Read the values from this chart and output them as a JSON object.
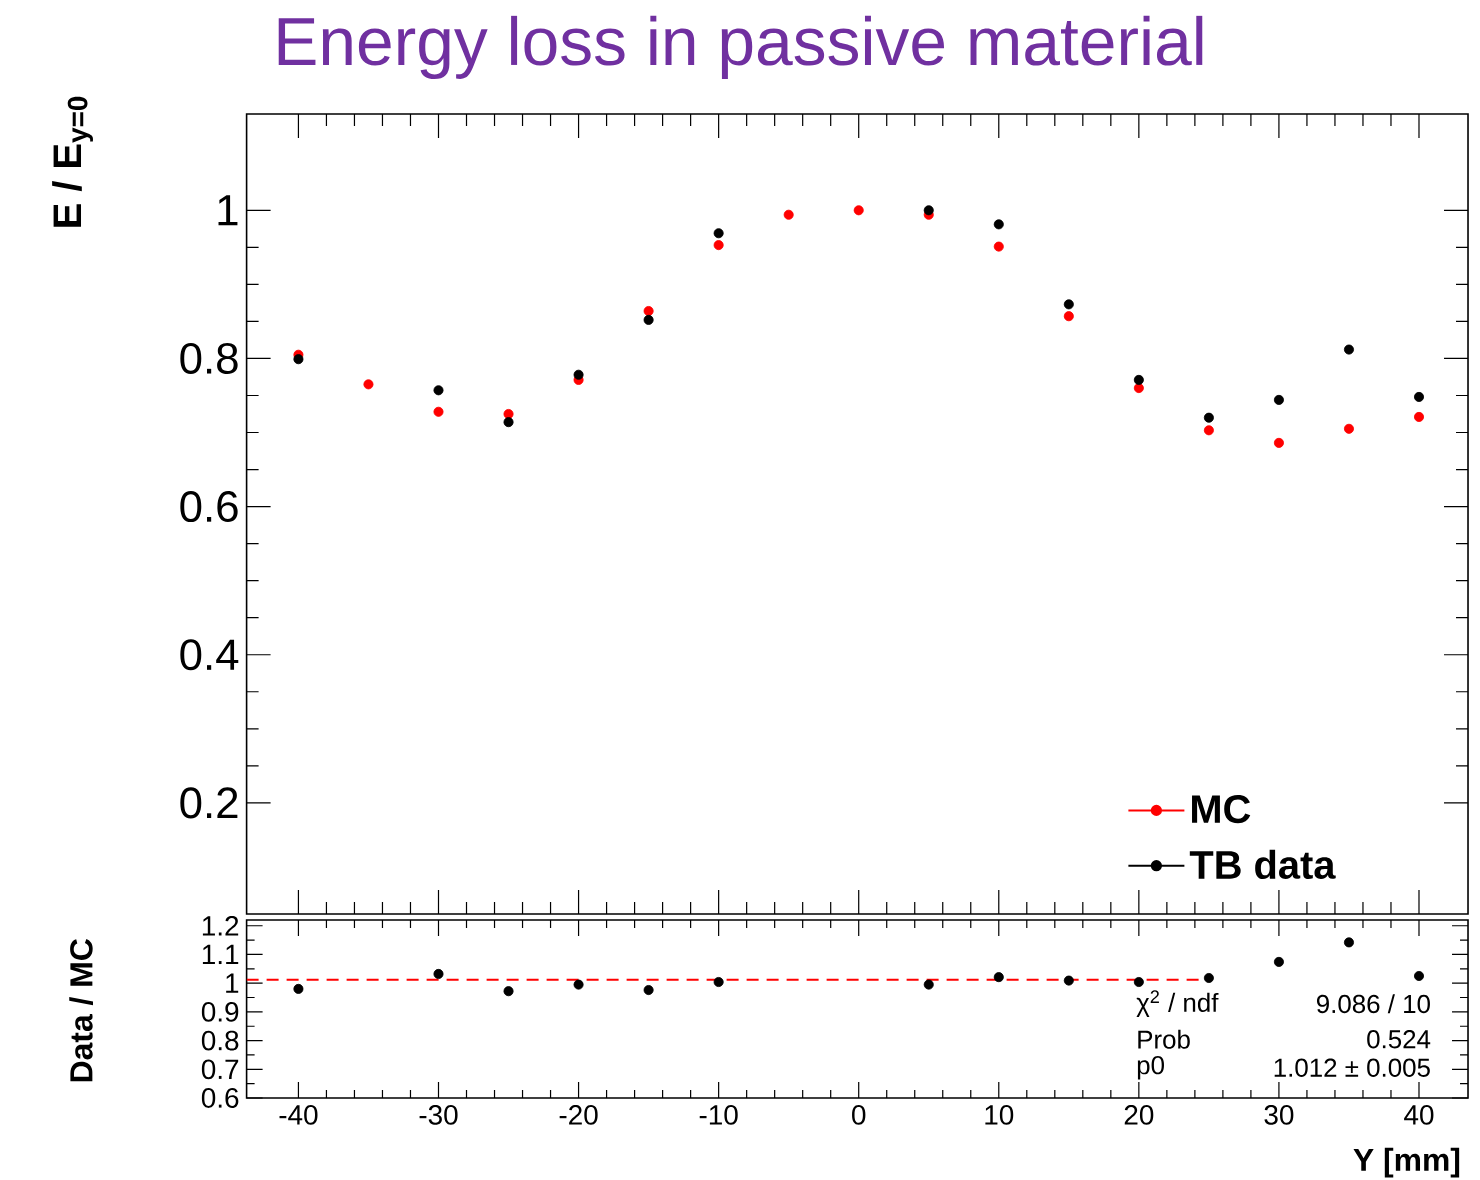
{
  "chart_data": [
    {
      "type": "scatter",
      "title": "Energy loss in passive material",
      "ylabel": "E / E$_{y=0}$",
      "x": [
        -40,
        -35,
        -30,
        -25,
        -20,
        -15,
        -10,
        -5,
        0,
        5,
        10,
        15,
        20,
        25,
        30,
        35,
        40
      ],
      "series": [
        {
          "name": "MC",
          "color": "#ff0000",
          "values": [
            0.805,
            0.765,
            0.728,
            0.725,
            0.771,
            0.864,
            0.953,
            0.994,
            1.0,
            0.994,
            0.951,
            0.857,
            0.76,
            0.703,
            0.686,
            0.705,
            0.721
          ]
        },
        {
          "name": "TB data",
          "color": "#000000",
          "values": [
            0.799,
            null,
            0.757,
            0.714,
            0.778,
            0.852,
            0.969,
            null,
            null,
            1.0,
            0.981,
            0.873,
            0.771,
            0.72,
            0.744,
            0.812,
            0.748
          ]
        }
      ],
      "xlim": [
        -43.7,
        43.5
      ],
      "ylim": [
        0.05,
        1.13
      ],
      "xticks": [
        -40,
        -30,
        -20,
        -10,
        0,
        10,
        20,
        30,
        40
      ],
      "yticks": [
        0.2,
        0.4,
        0.6,
        0.8,
        1
      ],
      "tick_labels": "y",
      "marker": "circle",
      "legend": "bottom right"
    },
    {
      "type": "scatter",
      "xlabel": "Y [mm]",
      "ylabel": "Data / MC",
      "x": [
        -40,
        -30,
        -25,
        -20,
        -15,
        -10,
        5,
        10,
        15,
        20,
        25,
        30,
        35,
        40
      ],
      "series": [
        {
          "color": "#000000",
          "values": [
            0.98,
            1.032,
            0.972,
            0.995,
            0.976,
            1.004,
            0.995,
            1.021,
            1.009,
            1.004,
            1.018,
            1.074,
            1.142,
            1.025
          ]
        },
        {
          "type": "line",
          "color": "#ff0000",
          "line_style": "dashed",
          "marker": "none",
          "x": [
            -43.7,
            25.1
          ],
          "values": [
            1.012,
            1.012
          ]
        }
      ],
      "xlim": [
        -43.7,
        43.5
      ],
      "ylim": [
        0.6,
        1.22
      ],
      "xticks": [
        -40,
        -30,
        -20,
        -10,
        0,
        10,
        20,
        30,
        40
      ],
      "yticks": [
        0.6,
        0.7,
        0.8,
        0.9,
        1,
        1.1,
        1.2
      ],
      "marker": "circle",
      "annotations": [
        "χ$^{2}$ / ndf",
        "9.086 / 10",
        "Prob",
        "0.524",
        "p0",
        "1.012 ± 0.005"
      ]
    }
  ]
}
